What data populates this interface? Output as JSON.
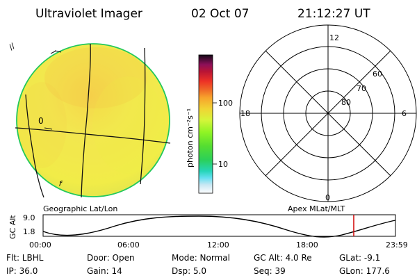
{
  "header": {
    "title": "Ultraviolet Imager",
    "date": "02 Oct 07",
    "time": "21:12:27 UT"
  },
  "earth_image": {
    "outline_color": "#23c85d",
    "fill_color": "#f3ef45",
    "bright_color": "#f7c340",
    "marker_top": "//",
    "marker_mid": "0",
    "marker_bottom": "f"
  },
  "colorbar": {
    "label": "photon cm⁻²s⁻¹",
    "ticks": {
      "hi": "100",
      "lo": "10"
    }
  },
  "polar_grid": {
    "labels": {
      "top": "12",
      "bottom": "0",
      "left": "18",
      "right": "6",
      "ring_60": "60",
      "ring_70": "70",
      "ring_80": "80"
    }
  },
  "captions": {
    "left": "Geographic Lat/Lon",
    "right": "Apex MLat/MLT"
  },
  "altitude_plot": {
    "ylabel": "GC Alt",
    "ytick_top": "9.0",
    "ytick_bottom": "1.8",
    "xticks": [
      "00:00",
      "06:00",
      "12:00",
      "18:00",
      "23:59"
    ],
    "marker_color": "#d10000"
  },
  "footer": {
    "row1": {
      "flt": "Flt: LBHL",
      "door": "Door: Open",
      "mode": "Mode: Normal",
      "gc_alt": "GC Alt: 4.0 Re",
      "glat": "GLat: -9.1"
    },
    "row2": {
      "ip": "IP: 36.0",
      "gain": "Gain: 14",
      "dsp": "Dsp: 5.0",
      "seq": "Seq: 39",
      "glon": "GLon: 177.6"
    }
  }
}
